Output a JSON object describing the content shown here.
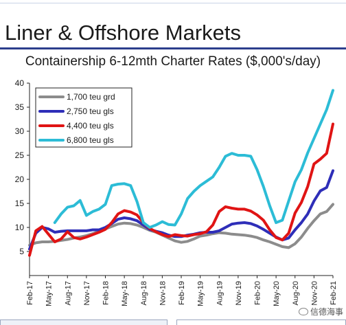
{
  "header": {
    "section_title": "Liner & Offshore Markets",
    "watermark_text": "信德海事"
  },
  "colors": {
    "header_rule": "#2c3e8c",
    "series": [
      "#8c8c8c",
      "#2e2eb8",
      "#e01414",
      "#2cbcd6"
    ]
  },
  "chart_data": {
    "type": "line",
    "title": "Containership 6-12mth Charter Rates ($,000's/day)",
    "xlabel": "",
    "ylabel": "",
    "ylim": [
      0,
      40
    ],
    "yticks": [
      5,
      10,
      15,
      20,
      25,
      30,
      35,
      40
    ],
    "grid": false,
    "legend_position": "top-left",
    "x_tick_labels": [
      "Feb-17",
      "May-17",
      "Aug-17",
      "Nov-17",
      "Feb-18",
      "May-18",
      "Aug-18",
      "Nov-18",
      "Feb-19",
      "May-19",
      "Aug-19",
      "Nov-19",
      "Feb-20",
      "May-20",
      "Aug-20",
      "Nov-20",
      "Feb-21"
    ],
    "x": [
      "Feb-17",
      "Mar-17",
      "Apr-17",
      "May-17",
      "Jun-17",
      "Jul-17",
      "Aug-17",
      "Sep-17",
      "Oct-17",
      "Nov-17",
      "Dec-17",
      "Jan-18",
      "Feb-18",
      "Mar-18",
      "Apr-18",
      "May-18",
      "Jun-18",
      "Jul-18",
      "Aug-18",
      "Sep-18",
      "Oct-18",
      "Nov-18",
      "Dec-18",
      "Jan-19",
      "Feb-19",
      "Mar-19",
      "Apr-19",
      "May-19",
      "Jun-19",
      "Jul-19",
      "Aug-19",
      "Sep-19",
      "Oct-19",
      "Nov-19",
      "Dec-19",
      "Jan-20",
      "Feb-20",
      "Mar-20",
      "Apr-20",
      "May-20",
      "Jun-20",
      "Jul-20",
      "Aug-20",
      "Sep-20",
      "Oct-20",
      "Nov-20",
      "Dec-20",
      "Jan-21",
      "Feb-21"
    ],
    "series": [
      {
        "name": "1,700 teu grd",
        "values": [
          6.3,
          6.8,
          7.0,
          7.0,
          7.1,
          7.3,
          7.5,
          7.8,
          8.0,
          8.3,
          8.7,
          9.2,
          9.7,
          10.2,
          10.7,
          10.9,
          10.8,
          10.5,
          10.0,
          9.4,
          9.0,
          8.4,
          7.8,
          7.2,
          6.9,
          7.1,
          7.6,
          8.2,
          8.4,
          8.7,
          8.9,
          8.8,
          8.6,
          8.5,
          8.4,
          8.2,
          7.9,
          7.4,
          7.0,
          6.5,
          6.0,
          5.8,
          6.6,
          8.0,
          9.8,
          11.4,
          12.8,
          13.3,
          14.8
        ]
      },
      {
        "name": "2,750 teu gls",
        "values": [
          5.5,
          8.8,
          10.0,
          9.7,
          9.0,
          9.2,
          9.3,
          9.3,
          9.3,
          9.3,
          9.5,
          9.5,
          10.0,
          10.8,
          11.7,
          12.0,
          11.8,
          11.4,
          10.5,
          9.6,
          9.2,
          8.9,
          8.4,
          8.1,
          8.1,
          8.4,
          8.6,
          8.9,
          9.0,
          9.0,
          9.3,
          10.0,
          10.7,
          10.9,
          11.0,
          10.8,
          10.3,
          9.6,
          8.8,
          8.0,
          7.4,
          7.8,
          9.5,
          11.0,
          12.8,
          15.5,
          17.6,
          18.3,
          21.8
        ]
      },
      {
        "name": "4,400 teu gls",
        "values": [
          4.2,
          9.3,
          10.2,
          8.6,
          7.0,
          7.6,
          9.1,
          7.9,
          7.6,
          8.0,
          8.5,
          9.0,
          9.6,
          11.0,
          12.8,
          13.5,
          13.2,
          12.6,
          11.0,
          9.8,
          9.1,
          8.5,
          8.1,
          8.5,
          8.3,
          8.2,
          8.5,
          8.7,
          9.1,
          10.5,
          13.3,
          14.3,
          14.0,
          13.8,
          13.8,
          13.4,
          12.6,
          11.5,
          9.5,
          7.9,
          7.4,
          8.8,
          13.0,
          15.2,
          18.5,
          23.2,
          24.2,
          25.4,
          31.5
        ]
      },
      {
        "name": "6,800 teu gls",
        "values": [
          null,
          null,
          null,
          null,
          11.0,
          12.8,
          14.2,
          14.5,
          15.6,
          12.5,
          13.3,
          13.8,
          14.8,
          18.7,
          19.0,
          19.1,
          18.7,
          15.4,
          11.0,
          10.0,
          10.5,
          11.2,
          10.6,
          10.5,
          12.8,
          16.0,
          17.5,
          18.7,
          19.6,
          20.5,
          22.5,
          24.8,
          25.4,
          25.0,
          25.0,
          24.8,
          22.0,
          18.5,
          14.5,
          11.0,
          11.5,
          15.5,
          19.5,
          22.0,
          25.5,
          28.5,
          31.5,
          34.5,
          38.5
        ]
      }
    ]
  }
}
